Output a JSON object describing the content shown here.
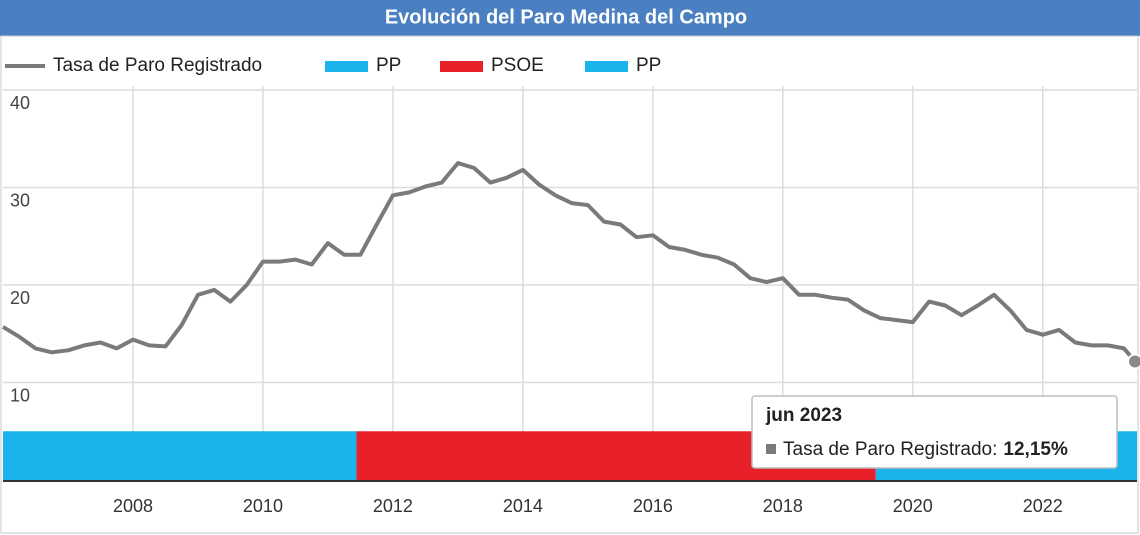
{
  "chart_data": {
    "type": "line",
    "title": "Evolución del Paro Medina del Campo",
    "x": [
      2006,
      2006.25,
      2006.5,
      2006.75,
      2007,
      2007.25,
      2007.5,
      2007.75,
      2008,
      2008.25,
      2008.5,
      2008.75,
      2009,
      2009.25,
      2009.5,
      2009.75,
      2010,
      2010.25,
      2010.5,
      2010.75,
      2011,
      2011.25,
      2011.5,
      2011.75,
      2012,
      2012.25,
      2012.5,
      2012.75,
      2013,
      2013.25,
      2013.5,
      2013.75,
      2014,
      2014.25,
      2014.5,
      2014.75,
      2015,
      2015.25,
      2015.5,
      2015.75,
      2016,
      2016.25,
      2016.5,
      2016.75,
      2017,
      2017.25,
      2017.5,
      2017.75,
      2018,
      2018.25,
      2018.5,
      2018.75,
      2019,
      2019.25,
      2019.5,
      2019.75,
      2020,
      2020.25,
      2020.5,
      2020.75,
      2021,
      2021.25,
      2021.5,
      2021.75,
      2022,
      2022.25,
      2022.5,
      2022.75,
      2023,
      2023.25,
      2023.42
    ],
    "series": [
      {
        "name": "Tasa de Paro Registrado",
        "color": "#7a7a7a",
        "values": [
          15.7,
          14.7,
          13.5,
          13.1,
          13.3,
          13.8,
          14.1,
          13.5,
          14.4,
          13.8,
          13.7,
          15.9,
          19.0,
          19.5,
          18.3,
          20.0,
          22.4,
          22.4,
          22.6,
          22.1,
          24.3,
          23.1,
          23.1,
          26.2,
          29.2,
          29.5,
          30.1,
          30.5,
          32.5,
          32.0,
          30.5,
          31.0,
          31.8,
          30.3,
          29.2,
          28.4,
          28.2,
          26.5,
          26.2,
          24.9,
          25.1,
          23.9,
          23.6,
          23.1,
          22.8,
          22.1,
          20.7,
          20.3,
          20.7,
          19.0,
          19.0,
          18.7,
          18.5,
          17.4,
          16.6,
          16.4,
          16.2,
          18.3,
          17.9,
          16.9,
          17.9,
          19.0,
          17.4,
          15.4,
          14.9,
          15.4,
          14.1,
          13.8,
          13.8,
          13.5,
          12.15
        ]
      }
    ],
    "bands": [
      {
        "name": "PP",
        "color": "#1ab3ec",
        "start": 2006,
        "end": 2011.44,
        "value": 5
      },
      {
        "name": "PSOE",
        "color": "#e8202a",
        "start": 2011.44,
        "end": 2019.43,
        "value": 5
      },
      {
        "name": "PP",
        "color": "#1ab3ec",
        "start": 2019.43,
        "end": 2023.45,
        "value": 5
      }
    ],
    "xlim": [
      2006,
      2023.45
    ],
    "xticks": [
      2008,
      2010,
      2012,
      2014,
      2016,
      2018,
      2020,
      2022
    ],
    "ylim": [
      0,
      40
    ],
    "yticks": [
      10,
      20,
      30,
      40
    ],
    "grid": true,
    "tooltip": {
      "title": "jun 2023",
      "label": "Tasa de Paro Registrado:",
      "value_label": "12,15%"
    }
  }
}
